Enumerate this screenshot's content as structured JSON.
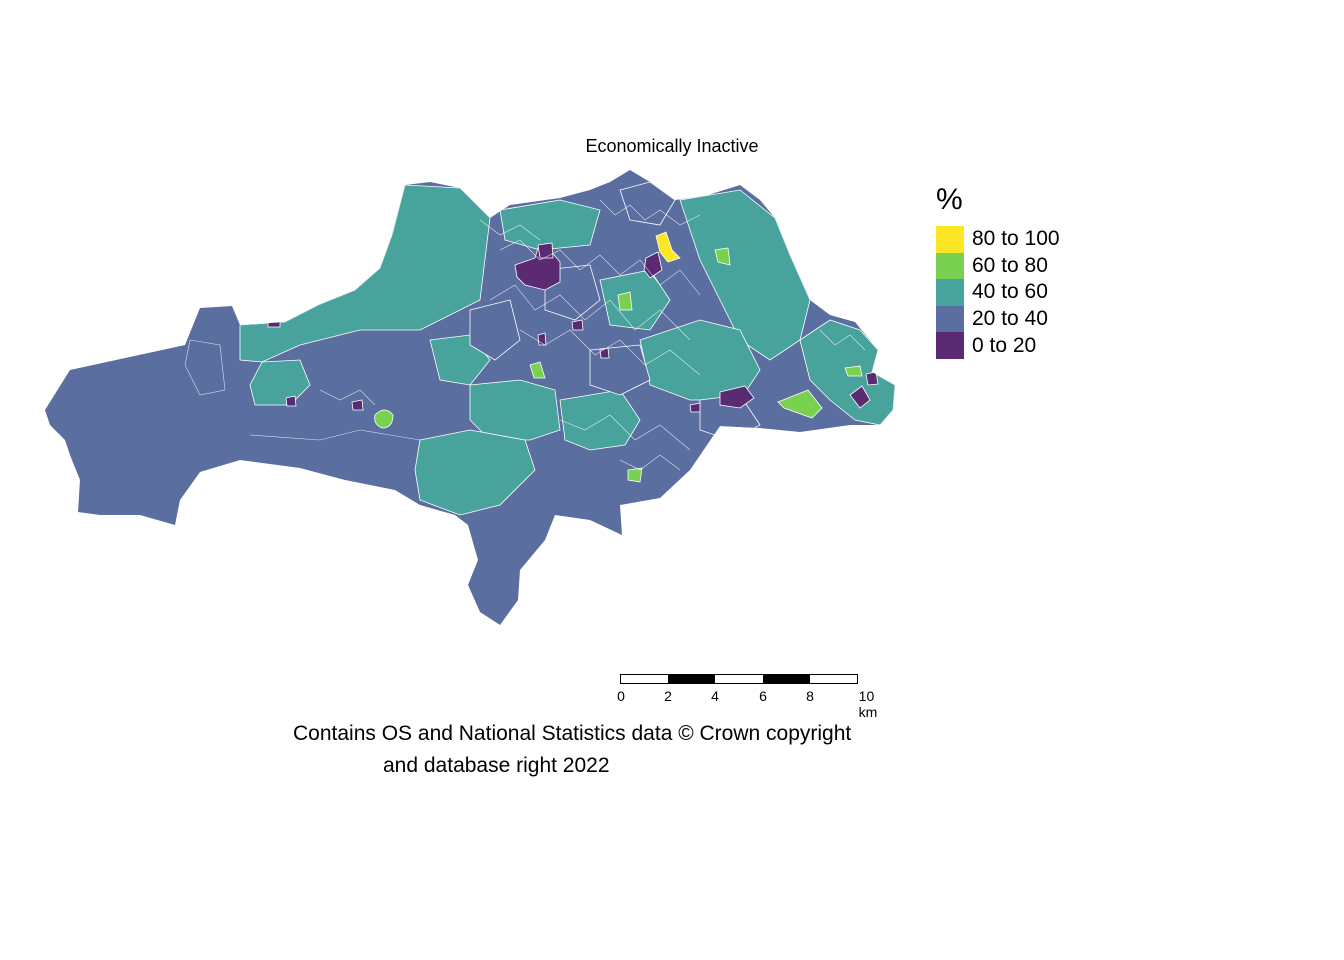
{
  "title": "Economically Inactive",
  "legend": {
    "title": "%",
    "items": [
      {
        "label": "80 to 100",
        "color": "#fde725"
      },
      {
        "label": "60 to 80",
        "color": "#7ad151"
      },
      {
        "label": "40 to 60",
        "color": "#48a39c"
      },
      {
        "label": "20 to 40",
        "color": "#5b6ea0"
      },
      {
        "label": "0 to 20",
        "color": "#5a2b73"
      }
    ]
  },
  "scale": {
    "ticks": [
      "0",
      "2",
      "4",
      "6",
      "8",
      "10 km"
    ]
  },
  "credit": {
    "line1": "Contains OS and National Statistics data © Crown copyright",
    "line2": "and database right 2022"
  }
}
